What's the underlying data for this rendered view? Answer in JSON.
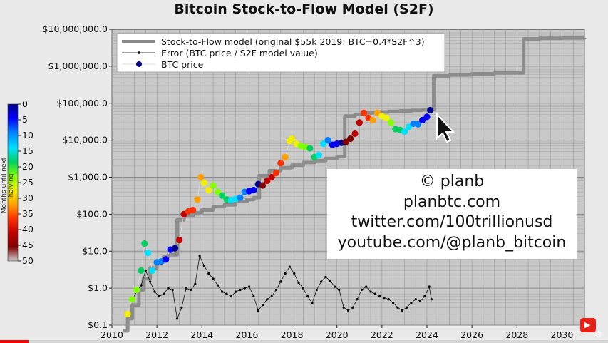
{
  "title": "Bitcoin Stock-to-Flow Model (S2F)",
  "chart_data": {
    "type": "scatter",
    "title": "Bitcoin Stock-to-Flow Model (S2F)",
    "y_scale": "log",
    "ylim": [
      0.1,
      10000000
    ],
    "xlim": [
      2010,
      2031
    ],
    "y_ticks": [
      0.1,
      1,
      10,
      100,
      1000,
      10000,
      100000,
      1000000,
      10000000
    ],
    "y_tick_labels": [
      "$0.1",
      "$1.0",
      "$10.0",
      "$100.0",
      "$1,000.0",
      "$10,000.0",
      "$100,000.0",
      "$1,000,000.0",
      "$10,000,000.0"
    ],
    "x_ticks": [
      2010,
      2012,
      2014,
      2016,
      2018,
      2020,
      2022,
      2024,
      2026,
      2028,
      2030
    ],
    "x_tick_labels": [
      "2010",
      "2012",
      "2014",
      "2016",
      "2018",
      "2020",
      "2022",
      "2024",
      "2026",
      "2028",
      "2030"
    ],
    "grid": true,
    "legend_position": "top-left",
    "legend": [
      {
        "label": "Stock-to-Flow model (original $55k 2019:  BTC=0.4*S2F^3)",
        "color": "#888888"
      },
      {
        "label": "Error (BTC price / S2F model value)",
        "color": "#000000"
      },
      {
        "label": "BTC price",
        "color": "#00008b"
      }
    ],
    "colorbar": {
      "label": "Months until next halving",
      "ticks": [
        0,
        5,
        10,
        15,
        20,
        25,
        30,
        35,
        40,
        45,
        50
      ],
      "colors": [
        "#00008b",
        "#0000ff",
        "#0080ff",
        "#00e0ff",
        "#00d060",
        "#80ff00",
        "#f0f000",
        "#ffa000",
        "#ff3000",
        "#c00000",
        "#800000",
        "#d0d0d0"
      ]
    },
    "series": [
      {
        "name": "Stock-to-Flow model (original $55k 2019:  BTC=0.4*S2F^3)",
        "type": "step",
        "x": [
          2010.5,
          2010.7,
          2010.9,
          2011.2,
          2011.4,
          2011.7,
          2012.0,
          2012.3,
          2012.5,
          2012.9,
          2013.2,
          2013.6,
          2014.0,
          2014.5,
          2015.0,
          2015.5,
          2016.0,
          2016.3,
          2016.55,
          2017.0,
          2017.5,
          2018.0,
          2018.5,
          2019.0,
          2019.5,
          2020.0,
          2020.35,
          2020.8,
          2021.3,
          2021.8,
          2022.3,
          2022.8,
          2023.3,
          2023.8,
          2024.1,
          2024.3,
          2025.0,
          2026.0,
          2027.0,
          2028.3,
          2029.0,
          2030.0,
          2031.0
        ],
        "y": [
          0.07,
          0.15,
          0.35,
          0.9,
          1.8,
          3.5,
          5.5,
          7,
          8,
          70,
          90,
          110,
          130,
          160,
          180,
          220,
          250,
          280,
          1100,
          1500,
          1800,
          2100,
          2500,
          2800,
          3200,
          3600,
          45000,
          50000,
          55000,
          58000,
          60000,
          62000,
          64000,
          66000,
          68000,
          550000,
          580000,
          620000,
          660000,
          5500000,
          5700000,
          5800000,
          5900000
        ]
      },
      {
        "name": "BTC price",
        "type": "scatter",
        "x": [
          2010.7,
          2010.9,
          2011.1,
          2011.3,
          2011.45,
          2011.6,
          2011.8,
          2012.0,
          2012.2,
          2012.4,
          2012.6,
          2012.8,
          2013.0,
          2013.2,
          2013.4,
          2013.6,
          2013.8,
          2013.95,
          2014.1,
          2014.3,
          2014.5,
          2014.7,
          2014.9,
          2015.1,
          2015.3,
          2015.5,
          2015.7,
          2015.9,
          2016.1,
          2016.3,
          2016.5,
          2016.7,
          2016.9,
          2017.1,
          2017.3,
          2017.5,
          2017.7,
          2017.9,
          2018.0,
          2018.2,
          2018.4,
          2018.6,
          2018.8,
          2019.0,
          2019.2,
          2019.4,
          2019.6,
          2019.8,
          2020.0,
          2020.2,
          2020.4,
          2020.6,
          2020.8,
          2021.0,
          2021.2,
          2021.4,
          2021.6,
          2021.8,
          2022.0,
          2022.2,
          2022.4,
          2022.6,
          2022.8,
          2023.0,
          2023.2,
          2023.4,
          2023.6,
          2023.8,
          2024.0,
          2024.15
        ],
        "y": [
          0.2,
          0.5,
          0.9,
          3,
          16,
          9,
          3,
          5,
          5.3,
          6,
          11,
          12,
          20,
          100,
          120,
          130,
          250,
          1000,
          700,
          450,
          600,
          400,
          320,
          250,
          240,
          260,
          280,
          400,
          420,
          450,
          650,
          600,
          800,
          1000,
          1300,
          2400,
          3500,
          9500,
          11000,
          8000,
          7000,
          6500,
          6000,
          3500,
          4000,
          8000,
          10000,
          7500,
          8000,
          8500,
          9000,
          11000,
          15000,
          30000,
          55000,
          40000,
          35000,
          55000,
          45000,
          40000,
          30000,
          20000,
          19000,
          17000,
          23000,
          28000,
          27000,
          35000,
          43000,
          65000
        ]
      },
      {
        "name": "Error (BTC price / S2F model value)",
        "type": "line",
        "x": [
          2010.9,
          2011.1,
          2011.3,
          2011.5,
          2011.7,
          2011.9,
          2012.1,
          2012.3,
          2012.5,
          2012.7,
          2012.9,
          2013.1,
          2013.3,
          2013.5,
          2013.7,
          2013.9,
          2014.1,
          2014.3,
          2014.5,
          2014.7,
          2014.9,
          2015.1,
          2015.3,
          2015.5,
          2015.7,
          2015.9,
          2016.1,
          2016.3,
          2016.5,
          2016.7,
          2016.9,
          2017.1,
          2017.3,
          2017.5,
          2017.7,
          2017.9,
          2018.1,
          2018.3,
          2018.5,
          2018.7,
          2018.9,
          2019.1,
          2019.3,
          2019.5,
          2019.7,
          2019.9,
          2020.1,
          2020.3,
          2020.5,
          2020.7,
          2020.9,
          2021.1,
          2021.3,
          2021.5,
          2021.7,
          2021.9,
          2022.1,
          2022.3,
          2022.5,
          2022.7,
          2022.9,
          2023.1,
          2023.3,
          2023.5,
          2023.7,
          2023.9,
          2024.1,
          2024.2
        ],
        "y": [
          0.5,
          0.8,
          1.2,
          3,
          1.5,
          0.8,
          0.6,
          0.7,
          1.0,
          0.9,
          0.15,
          0.3,
          1.0,
          0.9,
          1.3,
          7.5,
          4,
          2.5,
          1.8,
          1.2,
          0.8,
          0.7,
          0.6,
          0.8,
          0.9,
          1.0,
          1.1,
          0.6,
          0.25,
          0.35,
          0.5,
          0.6,
          0.9,
          1.5,
          2.5,
          3.8,
          2.5,
          1.4,
          1.0,
          0.6,
          0.4,
          0.9,
          1.5,
          2.0,
          1.6,
          1.1,
          0.9,
          0.3,
          0.25,
          0.3,
          0.5,
          0.9,
          1.1,
          0.8,
          0.7,
          0.6,
          0.55,
          0.5,
          0.4,
          0.3,
          0.25,
          0.3,
          0.4,
          0.5,
          0.45,
          0.6,
          1.1,
          0.5
        ]
      }
    ]
  },
  "watermark": {
    "line1": "© planb",
    "line2": "planbtc.com",
    "line3": "twitter.com/100trillionusd",
    "line4": "youtube.com/@planb_bitcoin"
  },
  "player": {
    "progress_fraction": 0.047,
    "subscribe_icon": "youtube-subscribe-icon",
    "settings_icon": "gear-icon"
  }
}
